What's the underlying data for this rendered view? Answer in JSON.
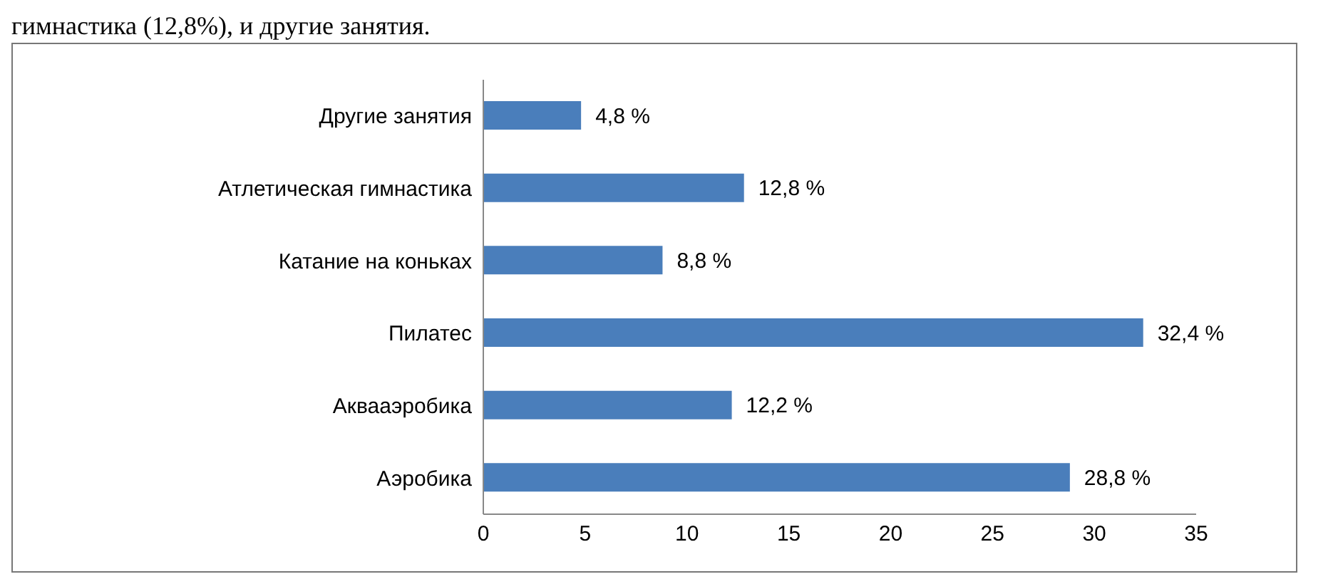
{
  "chart_data": {
    "type": "bar",
    "orientation": "horizontal",
    "annotations": [
      "гимнастика (12,8%), и другие занятия."
    ],
    "categories": [
      "Другие занятия",
      "Атлетическая гимнастика",
      "Катание на коньках",
      "Пилатес",
      "Аквааэробика",
      "Аэробика"
    ],
    "values": [
      4.8,
      12.8,
      8.8,
      32.4,
      12.2,
      28.8
    ],
    "value_labels": [
      "4,8 %",
      "12,8 %",
      "8,8 %",
      "32,4 %",
      "12,2 %",
      "28,8 %"
    ],
    "color": "#4a7ebb",
    "xlim": [
      0,
      35
    ],
    "xticks": [
      0,
      5,
      10,
      15,
      20,
      25,
      30,
      35
    ],
    "grid": false,
    "legend": false
  }
}
